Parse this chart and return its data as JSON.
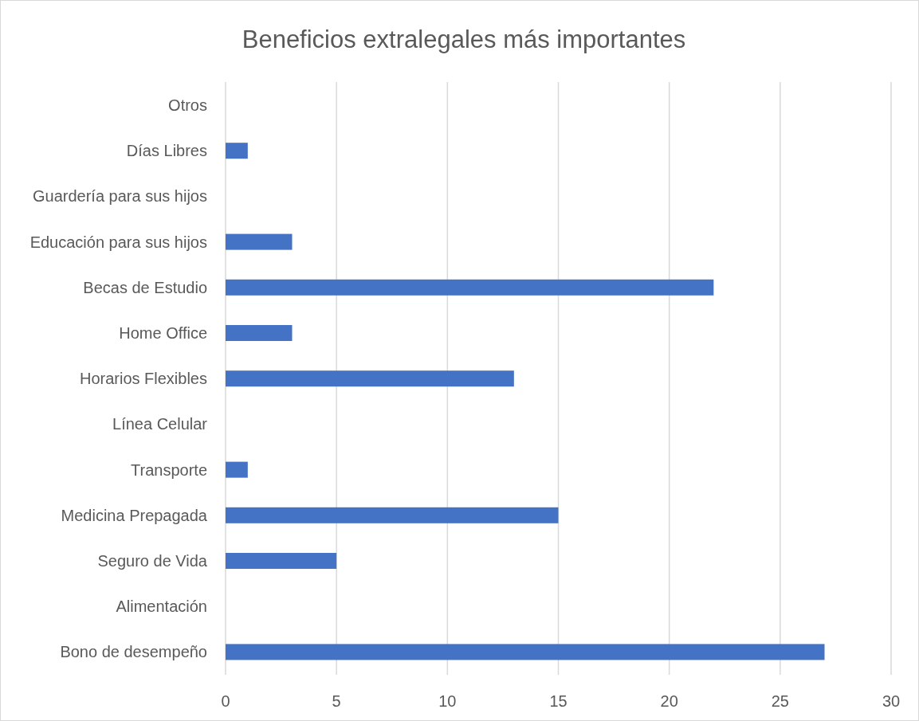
{
  "chart_data": {
    "type": "bar",
    "orientation": "horizontal",
    "title": "Beneficios extralegales más importantes",
    "categories": [
      "Otros",
      "Días Libres",
      "Guardería para sus hijos",
      "Educación para sus hijos",
      "Becas de Estudio",
      "Home Office",
      "Horarios Flexibles",
      "Línea Celular",
      "Transporte",
      "Medicina Prepagada",
      "Seguro de Vida",
      "Alimentación",
      "Bono de desempeño"
    ],
    "values": [
      0,
      1,
      0,
      3,
      22,
      3,
      13,
      0,
      1,
      15,
      5,
      0,
      27
    ],
    "color": "#4472c4",
    "xlim": [
      0,
      30
    ],
    "xticks": [
      0,
      5,
      10,
      15,
      20,
      25,
      30
    ],
    "grid": "x"
  }
}
